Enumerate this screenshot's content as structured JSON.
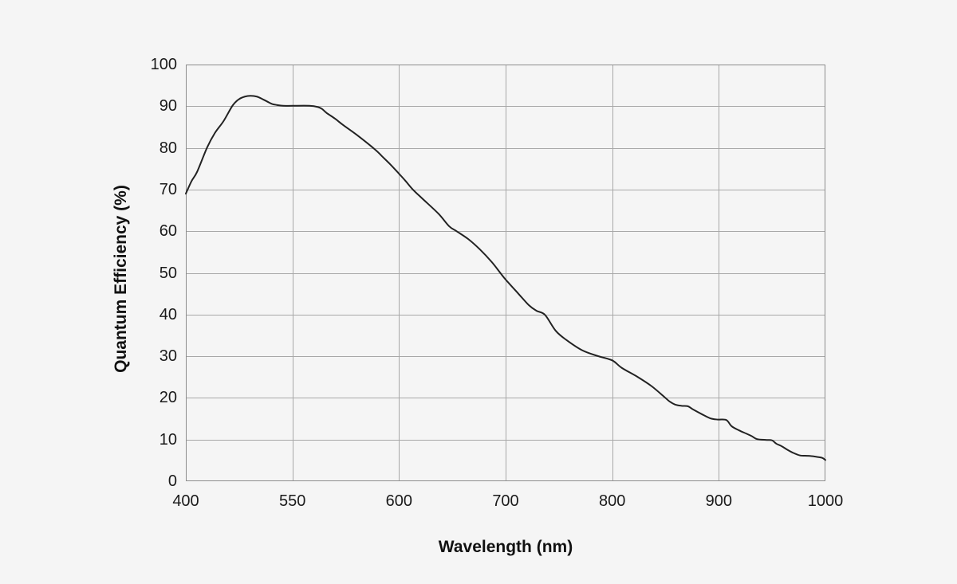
{
  "figure": {
    "background_color": "#f5f5f5"
  },
  "chart_data": {
    "type": "line",
    "title": "",
    "xlabel": "Wavelength (nm)",
    "ylabel": "Quantum Efficiency (%)",
    "x_tick_labels": [
      "400",
      "550",
      "600",
      "700",
      "800",
      "900",
      "1000"
    ],
    "x_tick_values": [
      400,
      550,
      600,
      700,
      800,
      900,
      1000
    ],
    "y_tick_labels": [
      "0",
      "10",
      "20",
      "30",
      "40",
      "50",
      "60",
      "70",
      "80",
      "90",
      "100"
    ],
    "y_tick_values": [
      0,
      10,
      20,
      30,
      40,
      50,
      60,
      70,
      80,
      90,
      100
    ],
    "ylim": [
      0,
      100
    ],
    "grid": true,
    "legend": "none",
    "line_color": "#222222",
    "line_width": 2,
    "gridline_color": "#a8a8a8",
    "border_color": "#8c8c8c",
    "text_color": "#1a1a1a",
    "series": [
      {
        "name": "Quantum Efficiency",
        "points": [
          [
            400,
            69.0
          ],
          [
            408,
            72.0
          ],
          [
            416,
            74.3
          ],
          [
            430,
            80.1
          ],
          [
            441,
            83.6
          ],
          [
            453,
            86.4
          ],
          [
            466,
            90.2
          ],
          [
            475,
            91.7
          ],
          [
            483,
            92.3
          ],
          [
            491,
            92.5
          ],
          [
            500,
            92.3
          ],
          [
            509,
            91.6
          ],
          [
            517,
            90.9
          ],
          [
            522,
            90.5
          ],
          [
            528,
            90.3
          ],
          [
            537,
            90.1
          ],
          [
            550,
            90.1
          ],
          [
            558,
            90.1
          ],
          [
            562,
            89.8
          ],
          [
            564,
            89.3
          ],
          [
            566,
            88.4
          ],
          [
            570,
            87.0
          ],
          [
            574,
            85.4
          ],
          [
            581,
            82.8
          ],
          [
            589,
            79.5
          ],
          [
            592,
            78.0
          ],
          [
            596,
            76.0
          ],
          [
            600,
            73.8
          ],
          [
            606,
            72.1
          ],
          [
            613,
            70.0
          ],
          [
            622,
            67.8
          ],
          [
            637,
            64.2
          ],
          [
            647,
            61.2
          ],
          [
            654,
            60.0
          ],
          [
            665,
            58.1
          ],
          [
            676,
            55.6
          ],
          [
            687,
            52.6
          ],
          [
            695,
            50.0
          ],
          [
            700,
            48.4
          ],
          [
            712,
            45.0
          ],
          [
            722,
            42.2
          ],
          [
            729,
            40.9
          ],
          [
            737,
            39.9
          ],
          [
            747,
            36.1
          ],
          [
            757,
            33.9
          ],
          [
            772,
            31.4
          ],
          [
            787,
            30.0
          ],
          [
            800,
            29.0
          ],
          [
            809,
            27.2
          ],
          [
            824,
            25.0
          ],
          [
            837,
            22.8
          ],
          [
            849,
            20.2
          ],
          [
            854,
            19.1
          ],
          [
            859,
            18.4
          ],
          [
            865,
            18.1
          ],
          [
            871,
            18.0
          ],
          [
            876,
            17.2
          ],
          [
            884,
            16.1
          ],
          [
            892,
            15.1
          ],
          [
            899,
            14.8
          ],
          [
            907,
            14.7
          ],
          [
            912,
            13.2
          ],
          [
            919,
            12.2
          ],
          [
            926,
            11.4
          ],
          [
            931,
            10.8
          ],
          [
            936,
            10.1
          ],
          [
            945,
            9.9
          ],
          [
            950,
            9.8
          ],
          [
            954,
            9.0
          ],
          [
            959,
            8.4
          ],
          [
            964,
            7.6
          ],
          [
            969,
            6.9
          ],
          [
            976,
            6.2
          ],
          [
            983,
            6.1
          ],
          [
            988,
            6.0
          ],
          [
            993,
            5.8
          ],
          [
            997,
            5.6
          ],
          [
            1000,
            5.1
          ]
        ]
      }
    ]
  }
}
